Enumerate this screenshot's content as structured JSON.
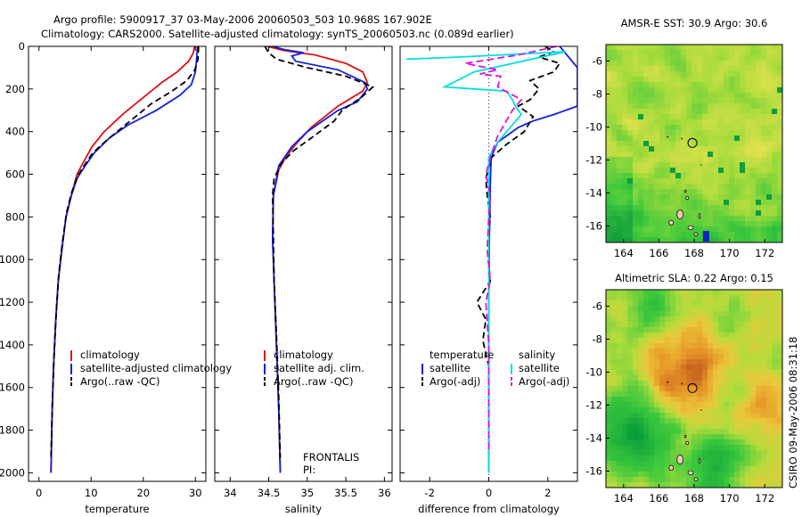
{
  "header": {
    "line1": "Argo profile:  5900917_37 03-May-2006 20060503_503 10.968S 167.902E",
    "line2": "Climatology: CARS2000. Satellite-adjusted climatology: synTS_20060503.nc (0.089d earlier)"
  },
  "side_label": "CSIRO 09-May-2006 08:31:18",
  "depth_ticks": [
    0,
    200,
    400,
    600,
    800,
    1000,
    1200,
    1400,
    1600,
    1800,
    2000
  ],
  "chart_data": [
    {
      "type": "line",
      "id": "temperature",
      "xlabel": "temperature",
      "ylabel": "",
      "xlim": [
        -2,
        32
      ],
      "ylim": [
        2040,
        0
      ],
      "xticks": [
        0,
        10,
        20,
        30
      ],
      "legend": [
        "climatology",
        "satellite-adjusted climatology",
        "Argo(..raw -QC)"
      ],
      "legend_position": "lower-right",
      "series": [
        {
          "name": "climatology",
          "color": "#e01010",
          "dash": "",
          "points": [
            [
              29.8,
              0
            ],
            [
              29.6,
              30
            ],
            [
              28.7,
              70
            ],
            [
              26.5,
              120
            ],
            [
              23.5,
              170
            ],
            [
              19.5,
              250
            ],
            [
              16,
              320
            ],
            [
              12.5,
              400
            ],
            [
              10.2,
              470
            ],
            [
              8.6,
              540
            ],
            [
              7.3,
              600
            ],
            [
              6.2,
              700
            ],
            [
              5.2,
              800
            ],
            [
              4.4,
              950
            ],
            [
              3.7,
              1100
            ],
            [
              3.2,
              1300
            ],
            [
              2.8,
              1500
            ],
            [
              2.5,
              1750
            ],
            [
              2.3,
              2000
            ]
          ]
        },
        {
          "name": "satellite-adjusted climatology",
          "color": "#1020e0",
          "dash": "",
          "points": [
            [
              30.4,
              0
            ],
            [
              30.3,
              40
            ],
            [
              30,
              120
            ],
            [
              29.2,
              180
            ],
            [
              27,
              230
            ],
            [
              22.5,
              300
            ],
            [
              17,
              370
            ],
            [
              13.5,
              430
            ],
            [
              10.6,
              500
            ],
            [
              8.6,
              570
            ],
            [
              7.3,
              620
            ],
            [
              6.2,
              700
            ],
            [
              5.2,
              800
            ],
            [
              4.4,
              950
            ],
            [
              3.7,
              1100
            ],
            [
              3.2,
              1300
            ],
            [
              2.8,
              1500
            ],
            [
              2.5,
              1750
            ],
            [
              2.3,
              2000
            ]
          ]
        },
        {
          "name": "Argo(..raw -QC)",
          "color": "#000000",
          "dash": "7,4",
          "points": [
            [
              30.6,
              0
            ],
            [
              30.5,
              60
            ],
            [
              29.9,
              110
            ],
            [
              28.4,
              160
            ],
            [
              25.5,
              210
            ],
            [
              21.5,
              270
            ],
            [
              17,
              360
            ],
            [
              13,
              440
            ],
            [
              10.3,
              500
            ],
            [
              8.9,
              550
            ],
            [
              7.4,
              610
            ],
            [
              6.2,
              690
            ],
            [
              5.3,
              780
            ],
            [
              4.5,
              920
            ],
            [
              3.8,
              1070
            ],
            [
              3.3,
              1250
            ],
            [
              2.9,
              1450
            ],
            [
              2.6,
              1650
            ],
            [
              2.4,
              1850
            ],
            [
              2.3,
              1930
            ]
          ]
        }
      ]
    },
    {
      "type": "line",
      "id": "salinity",
      "xlabel": "salinity",
      "ylabel": "",
      "xlim": [
        33.8,
        36.1
      ],
      "ylim": [
        2040,
        0
      ],
      "xticks": [
        34,
        34.5,
        35,
        35.5,
        36
      ],
      "legend": [
        "climatology",
        "satellite adj. clim.",
        "Argo(..raw -QC)"
      ],
      "legend_position": "lower-right",
      "annotation": [
        "FRONTALIS",
        "PI:"
      ],
      "series": [
        {
          "name": "climatology",
          "color": "#e01010",
          "dash": "",
          "points": [
            [
              34.48,
              0
            ],
            [
              34.7,
              20
            ],
            [
              35.1,
              40
            ],
            [
              35.5,
              80
            ],
            [
              35.72,
              120
            ],
            [
              35.78,
              170
            ],
            [
              35.72,
              210
            ],
            [
              35.4,
              280
            ],
            [
              35.05,
              380
            ],
            [
              34.85,
              460
            ],
            [
              34.72,
              520
            ],
            [
              34.63,
              580
            ],
            [
              34.56,
              700
            ],
            [
              34.55,
              900
            ],
            [
              34.57,
              1100
            ],
            [
              34.6,
              1400
            ],
            [
              34.63,
              1700
            ],
            [
              34.65,
              2000
            ]
          ]
        },
        {
          "name": "satellite adj. clim.",
          "color": "#1020e0",
          "dash": "",
          "points": [
            [
              34.55,
              0
            ],
            [
              34.7,
              15
            ],
            [
              34.95,
              30
            ],
            [
              34.8,
              45
            ],
            [
              34.85,
              70
            ],
            [
              35.4,
              110
            ],
            [
              35.75,
              170
            ],
            [
              35.78,
              200
            ],
            [
              35.65,
              260
            ],
            [
              35.4,
              300
            ],
            [
              35.0,
              400
            ],
            [
              34.8,
              470
            ],
            [
              34.63,
              560
            ],
            [
              34.56,
              700
            ],
            [
              34.55,
              900
            ],
            [
              34.57,
              1100
            ],
            [
              34.6,
              1400
            ],
            [
              34.63,
              1700
            ],
            [
              34.65,
              2000
            ]
          ]
        },
        {
          "name": "Argo(..raw -QC)",
          "color": "#000000",
          "dash": "7,4",
          "points": [
            [
              34.45,
              0
            ],
            [
              34.5,
              30
            ],
            [
              34.6,
              60
            ],
            [
              35.0,
              100
            ],
            [
              35.5,
              140
            ],
            [
              35.85,
              190
            ],
            [
              35.7,
              240
            ],
            [
              35.45,
              300
            ],
            [
              35.35,
              350
            ],
            [
              35.05,
              430
            ],
            [
              34.82,
              490
            ],
            [
              34.66,
              550
            ],
            [
              34.57,
              620
            ],
            [
              34.55,
              700
            ],
            [
              34.56,
              900
            ],
            [
              34.57,
              1100
            ],
            [
              34.6,
              1350
            ],
            [
              34.63,
              1650
            ],
            [
              34.65,
              1930
            ]
          ]
        }
      ]
    },
    {
      "type": "line",
      "id": "difference",
      "xlabel": "difference from climatology",
      "ylabel": "",
      "xlim": [
        -3,
        3
      ],
      "ylim": [
        2040,
        0
      ],
      "xticks": [
        -2,
        0,
        2
      ],
      "legend_groups": [
        {
          "title": "temperature",
          "items": [
            "satellite",
            "Argo(-adj)"
          ]
        },
        {
          "title": "salinity",
          "items": [
            "satellite",
            "Argo(-adj)"
          ]
        }
      ],
      "legend_position": "lower-center",
      "series": [
        {
          "name": "temperature satellite",
          "color": "#1020e0",
          "dash": "",
          "points": [
            [
              2.4,
              0
            ],
            [
              3,
              100
            ],
            [
              3,
              280
            ],
            [
              2.2,
              320
            ],
            [
              1.5,
              350
            ],
            [
              1.0,
              380
            ],
            [
              0.3,
              450
            ],
            [
              0.08,
              520
            ],
            [
              0.05,
              650
            ],
            [
              0.02,
              900
            ],
            [
              0,
              1200
            ],
            [
              0,
              2000
            ]
          ]
        },
        {
          "name": "temperature Argo(-adj)",
          "color": "#000000",
          "dash": "7,4",
          "points": [
            [
              1.9,
              0
            ],
            [
              2.2,
              25
            ],
            [
              1.7,
              50
            ],
            [
              2.4,
              80
            ],
            [
              2.2,
              120
            ],
            [
              1.4,
              160
            ],
            [
              1.7,
              200
            ],
            [
              1.4,
              250
            ],
            [
              1.0,
              280
            ],
            [
              1.5,
              330
            ],
            [
              1.2,
              400
            ],
            [
              0.6,
              460
            ],
            [
              0.1,
              520
            ],
            [
              -0.1,
              620
            ],
            [
              -0.05,
              700
            ],
            [
              0.05,
              800
            ],
            [
              -0.05,
              950
            ],
            [
              0.05,
              1100
            ],
            [
              -0.4,
              1200
            ],
            [
              -0.1,
              1280
            ],
            [
              -0.2,
              1380
            ],
            [
              0,
              1500
            ],
            [
              0,
              1700
            ],
            [
              0,
              1900
            ]
          ]
        },
        {
          "name": "salinity satellite",
          "color": "#00e0e0",
          "dash": "",
          "points": [
            [
              -2.8,
              60
            ],
            [
              -1.0,
              50
            ],
            [
              2.6,
              25
            ],
            [
              -0.5,
              120
            ],
            [
              -1.5,
              190
            ],
            [
              -0.5,
              200
            ],
            [
              0.6,
              210
            ],
            [
              0.8,
              250
            ],
            [
              0.9,
              280
            ],
            [
              1.1,
              320
            ],
            [
              0.6,
              400
            ],
            [
              0.3,
              450
            ],
            [
              0,
              520
            ],
            [
              0,
              1000
            ],
            [
              0,
              2000
            ]
          ]
        },
        {
          "name": "salinity Argo(-adj)",
          "color": "#e010e0",
          "dash": "8,4",
          "points": [
            [
              2.3,
              0
            ],
            [
              1.0,
              40
            ],
            [
              -0.8,
              80
            ],
            [
              0.3,
              110
            ],
            [
              -0.3,
              130
            ],
            [
              0.4,
              140
            ],
            [
              0.3,
              190
            ],
            [
              1.1,
              250
            ],
            [
              0.8,
              300
            ],
            [
              0.3,
              420
            ],
            [
              0.1,
              500
            ],
            [
              -0.1,
              600
            ],
            [
              0.05,
              700
            ],
            [
              0,
              800
            ],
            [
              -0.05,
              950
            ],
            [
              0.05,
              1100
            ],
            [
              -0.1,
              1200
            ],
            [
              0,
              1400
            ],
            [
              0,
              1600
            ],
            [
              0,
              1900
            ]
          ]
        }
      ]
    },
    {
      "type": "heatmap",
      "id": "sst-map",
      "title": "AMSR-E SST: 30.9 Argo: 30.6",
      "xlim": [
        163,
        173
      ],
      "ylim": [
        -17,
        -5
      ],
      "xticks": [
        164,
        166,
        168,
        170,
        172
      ],
      "yticks": [
        -6,
        -8,
        -10,
        -12,
        -14,
        -16
      ],
      "float_position": [
        167.902,
        -10.968
      ],
      "colorscale": "green-yellow"
    },
    {
      "type": "heatmap",
      "id": "sla-map",
      "title": "Altimetric SLA: 0.22 Argo: 0.15",
      "xlim": [
        163,
        173
      ],
      "ylim": [
        -17,
        -5
      ],
      "xticks": [
        164,
        166,
        168,
        170,
        172
      ],
      "yticks": [
        -6,
        -8,
        -10,
        -12,
        -14,
        -16
      ],
      "float_position": [
        167.902,
        -10.968
      ],
      "colorscale": "green-yellow-orange"
    }
  ]
}
